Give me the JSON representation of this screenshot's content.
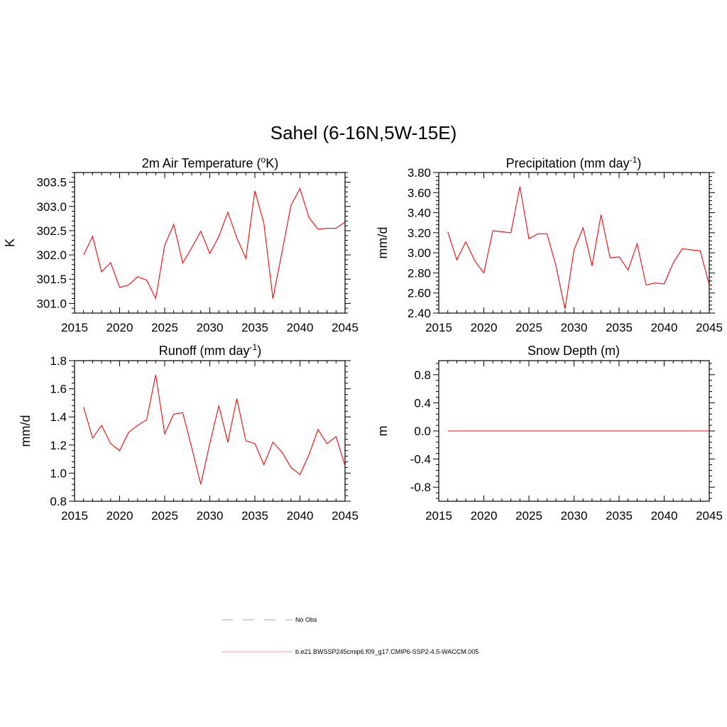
{
  "figure": {
    "title": "Sahel (6-16N,5W-15E)"
  },
  "chart_data": [
    {
      "type": "line",
      "title": "2m Air Temperature (",
      "title_sup": "o",
      "title_post": "K)",
      "ylabel": "K",
      "xlim": [
        2015,
        2045
      ],
      "ylim": [
        300.8,
        303.7
      ],
      "xticks": [
        2015,
        2020,
        2025,
        2030,
        2035,
        2040,
        2045
      ],
      "yticks": [
        301.0,
        301.5,
        302.0,
        302.5,
        303.0,
        303.5
      ],
      "ytick_labels": [
        "301.0",
        "301.5",
        "302.0",
        "302.5",
        "303.0",
        "303.5"
      ],
      "x": [
        2016,
        2017,
        2018,
        2019,
        2020,
        2021,
        2022,
        2023,
        2024,
        2025,
        2026,
        2027,
        2028,
        2029,
        2030,
        2031,
        2032,
        2033,
        2034,
        2035,
        2036,
        2037,
        2038,
        2039,
        2040,
        2041,
        2042,
        2043,
        2044,
        2045
      ],
      "series": [
        {
          "name": "b.e21.BWSSP245cmip6.f09_g17.CMIP6-SSP2-4.5-WACCM.005",
          "color": "#ff0000",
          "values": [
            302.0,
            302.38,
            301.65,
            301.84,
            301.33,
            301.38,
            301.55,
            301.48,
            301.1,
            302.2,
            302.63,
            301.83,
            302.15,
            302.49,
            302.03,
            302.38,
            302.88,
            302.35,
            301.93,
            303.32,
            302.65,
            301.1,
            302.05,
            303.02,
            303.37,
            302.77,
            302.53,
            302.55,
            302.55,
            302.68
          ]
        }
      ]
    },
    {
      "type": "line",
      "title": "Precipitation (mm day",
      "title_sup": "-1",
      "title_post": ")",
      "ylabel": "mm/d",
      "xlim": [
        2015,
        2045
      ],
      "ylim": [
        2.4,
        3.8
      ],
      "xticks": [
        2015,
        2020,
        2025,
        2030,
        2035,
        2040,
        2045
      ],
      "yticks": [
        2.4,
        2.6,
        2.8,
        3.0,
        3.2,
        3.4,
        3.6,
        3.8
      ],
      "ytick_labels": [
        "2.40",
        "2.60",
        "2.80",
        "3.00",
        "3.20",
        "3.40",
        "3.60",
        "3.80"
      ],
      "x": [
        2016,
        2017,
        2018,
        2019,
        2020,
        2021,
        2022,
        2023,
        2024,
        2025,
        2026,
        2027,
        2028,
        2029,
        2030,
        2031,
        2032,
        2033,
        2034,
        2035,
        2036,
        2037,
        2038,
        2039,
        2040,
        2041,
        2042,
        2043,
        2044,
        2045
      ],
      "series": [
        {
          "name": "b.e21.BWSSP245cmip6.f09_g17.CMIP6-SSP2-4.5-WACCM.005",
          "color": "#ff0000",
          "values": [
            3.21,
            2.93,
            3.11,
            2.92,
            2.8,
            3.22,
            3.21,
            3.2,
            3.66,
            3.14,
            3.19,
            3.19,
            2.87,
            2.44,
            3.03,
            3.25,
            2.87,
            3.38,
            2.95,
            2.96,
            2.83,
            3.09,
            2.68,
            2.7,
            2.69,
            2.9,
            3.04,
            3.03,
            3.02,
            2.68
          ]
        }
      ]
    },
    {
      "type": "line",
      "title": "Runoff (mm day",
      "title_sup": "-1",
      "title_post": ")",
      "ylabel": "mm/d",
      "xlim": [
        2015,
        2045
      ],
      "ylim": [
        0.8,
        1.8
      ],
      "xticks": [
        2015,
        2020,
        2025,
        2030,
        2035,
        2040,
        2045
      ],
      "yticks": [
        0.8,
        1.0,
        1.2,
        1.4,
        1.6,
        1.8
      ],
      "ytick_labels": [
        "0.8",
        "1.0",
        "1.2",
        "1.4",
        "1.6",
        "1.8"
      ],
      "x": [
        2016,
        2017,
        2018,
        2019,
        2020,
        2021,
        2022,
        2023,
        2024,
        2025,
        2026,
        2027,
        2028,
        2029,
        2030,
        2031,
        2032,
        2033,
        2034,
        2035,
        2036,
        2037,
        2038,
        2039,
        2040,
        2041,
        2042,
        2043,
        2044,
        2045
      ],
      "series": [
        {
          "name": "b.e21.BWSSP245cmip6.f09_g17.CMIP6-SSP2-4.5-WACCM.005",
          "color": "#ff0000",
          "values": [
            1.47,
            1.25,
            1.34,
            1.21,
            1.16,
            1.29,
            1.34,
            1.38,
            1.7,
            1.28,
            1.42,
            1.43,
            1.18,
            0.92,
            1.21,
            1.48,
            1.22,
            1.53,
            1.23,
            1.21,
            1.06,
            1.22,
            1.15,
            1.04,
            0.99,
            1.13,
            1.31,
            1.21,
            1.26,
            1.05
          ]
        }
      ]
    },
    {
      "type": "line",
      "title": "Snow Depth (m)",
      "title_sup": "",
      "title_post": "",
      "ylabel": "m",
      "xlim": [
        2015,
        2045
      ],
      "ylim": [
        -1.0,
        1.0
      ],
      "xticks": [
        2015,
        2020,
        2025,
        2030,
        2035,
        2040,
        2045
      ],
      "yticks": [
        -0.8,
        -0.4,
        0.0,
        0.4,
        0.8
      ],
      "ytick_labels": [
        "-0.8",
        "-0.4",
        "0.0",
        "0.4",
        "0.8"
      ],
      "x": [
        2016,
        2045
      ],
      "series": [
        {
          "name": "b.e21.BWSSP245cmip6.f09_g17.CMIP6-SSP2-4.5-WACCM.005",
          "color": "#ff0000",
          "values": [
            0.0,
            0.0
          ]
        }
      ]
    }
  ],
  "legend": {
    "items": [
      {
        "label": "No Obs",
        "color": "#b4b4e6",
        "style": "dashed"
      },
      {
        "label": "b.e21.BWSSP245cmip6.f09_g17.CMIP6-SSP2-4.5-WACCM.005",
        "color": "#ffaaaa",
        "style": "solid"
      }
    ]
  }
}
